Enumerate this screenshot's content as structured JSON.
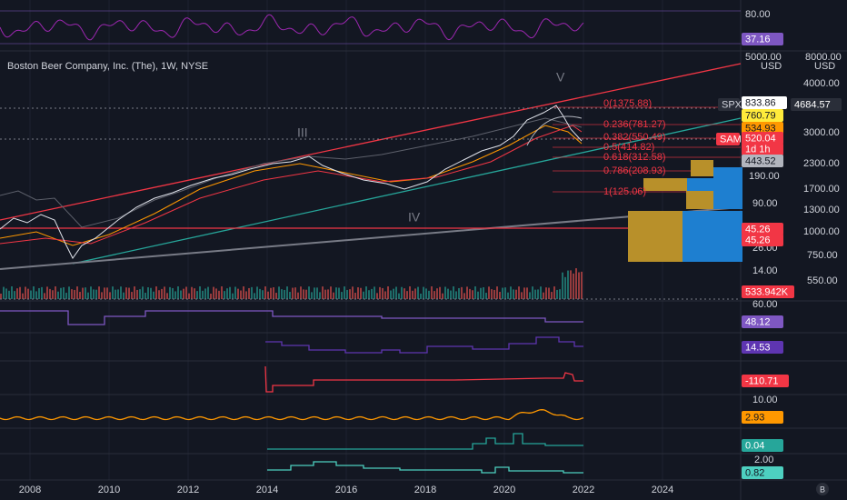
{
  "header": {
    "title": "Boston Beer Company, Inc. (The), 1W, NYSE"
  },
  "rsi": {
    "level": "80.00",
    "badge": "37.16"
  },
  "waves": [
    "V",
    "III",
    "IV"
  ],
  "fib": [
    "0(1375.88)",
    "0.236(781.27)",
    "0.382(550.49)",
    "0.5(414.82)",
    "0.618(312.58)",
    "0.786(208.93)",
    "1(125.06)"
  ],
  "axis_left": {
    "labels": [
      "5000.00",
      "USD",
      "190.00",
      "90.00",
      "26.00",
      "14.00",
      "60.00",
      "10.00",
      "2.00"
    ]
  },
  "axis_right": {
    "labels": [
      "8000.00",
      "USD",
      "4000.00",
      "3000.00",
      "2300.00",
      "1700.00",
      "1300.00",
      "1000.00",
      "750.00",
      "550.00"
    ]
  },
  "badges": {
    "spx_name": "SPX",
    "spx": "833.86",
    "spx_right": "4684.57",
    "b1": "760.79",
    "b2": "534.93",
    "b3": "520.04",
    "sam": "SAM",
    "countdown": "1d 1h",
    "b4": "443.52",
    "line1": "45.26",
    "line2": "45.26",
    "volume": "533.942K",
    "ind1": "48.12",
    "ind2": "14.53",
    "ind3": "-110.71",
    "ind4": "2.93",
    "ind5": "0.04",
    "ind6": "0.82"
  },
  "years": [
    "2008",
    "2010",
    "2012",
    "2014",
    "2016",
    "2018",
    "2020",
    "2022",
    "2024"
  ],
  "footer": {
    "icon": "B"
  }
}
